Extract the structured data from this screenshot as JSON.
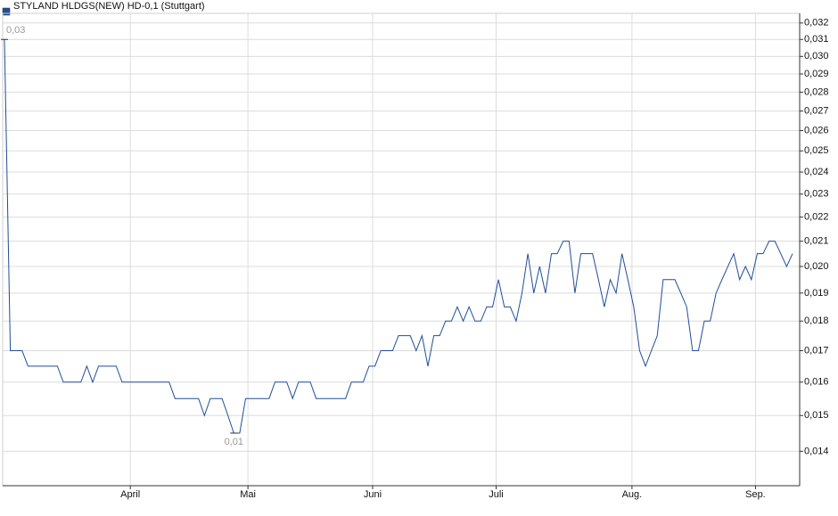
{
  "chart_data": {
    "type": "line",
    "title": "STYLAND HLDGS(NEW) HD-0,1 (Stuttgart)",
    "series": [
      {
        "name": "STYLAND HLDGS(NEW) HD-0,1 (Stuttgart)",
        "color": "#1f4e99",
        "values": [
          0.031,
          0.017,
          0.017,
          0.017,
          0.0165,
          0.0165,
          0.0165,
          0.0165,
          0.0165,
          0.0165,
          0.016,
          0.016,
          0.016,
          0.016,
          0.0165,
          0.016,
          0.0165,
          0.0165,
          0.0165,
          0.0165,
          0.016,
          0.016,
          0.016,
          0.016,
          0.016,
          0.016,
          0.016,
          0.016,
          0.016,
          0.0155,
          0.0155,
          0.0155,
          0.0155,
          0.0155,
          0.015,
          0.0155,
          0.0155,
          0.0155,
          0.015,
          0.0145,
          0.0145,
          0.0155,
          0.0155,
          0.0155,
          0.0155,
          0.0155,
          0.016,
          0.016,
          0.016,
          0.0155,
          0.016,
          0.016,
          0.016,
          0.0155,
          0.0155,
          0.0155,
          0.0155,
          0.0155,
          0.0155,
          0.016,
          0.016,
          0.016,
          0.0165,
          0.0165,
          0.017,
          0.017,
          0.017,
          0.0175,
          0.0175,
          0.0175,
          0.017,
          0.0175,
          0.0165,
          0.0175,
          0.0175,
          0.018,
          0.018,
          0.0185,
          0.018,
          0.0185,
          0.018,
          0.018,
          0.0185,
          0.0185,
          0.0195,
          0.0185,
          0.0185,
          0.018,
          0.019,
          0.0205,
          0.019,
          0.02,
          0.019,
          0.0205,
          0.0205,
          0.021,
          0.021,
          0.019,
          0.0205,
          0.0205,
          0.0205,
          0.0195,
          0.0185,
          0.0195,
          0.019,
          0.0205,
          0.0195,
          0.0185,
          0.017,
          0.0165,
          0.017,
          0.0175,
          0.0195,
          0.0195,
          0.0195,
          0.019,
          0.0185,
          0.017,
          0.017,
          0.018,
          0.018,
          0.019,
          0.0195,
          0.02,
          0.0205,
          0.0195,
          0.02,
          0.0195,
          0.0205,
          0.0205,
          0.021,
          0.021,
          0.0205,
          0.02,
          0.0205
        ]
      }
    ],
    "annotations": [
      "0,03",
      "0,01"
    ],
    "xlim": [
      0,
      134
    ],
    "xticks": [
      {
        "value": 21.4,
        "label": "April"
      },
      {
        "value": 41.4,
        "label": "Mai"
      },
      {
        "value": 62.6,
        "label": "Juni"
      },
      {
        "value": 83.6,
        "label": "Juli"
      },
      {
        "value": 106.7,
        "label": "Aug."
      },
      {
        "value": 127.7,
        "label": "Sep."
      }
    ],
    "ylim": [
      0.0131,
      0.0326
    ],
    "log_y": true,
    "yticks": [
      {
        "value": 0.014,
        "label": "0,014"
      },
      {
        "value": 0.015,
        "label": "0,015"
      },
      {
        "value": 0.016,
        "label": "0,016"
      },
      {
        "value": 0.017,
        "label": "0,017"
      },
      {
        "value": 0.018,
        "label": "0,018"
      },
      {
        "value": 0.019,
        "label": "0,019"
      },
      {
        "value": 0.02,
        "label": "0,020"
      },
      {
        "value": 0.021,
        "label": "0,021"
      },
      {
        "value": 0.022,
        "label": "0,022"
      },
      {
        "value": 0.023,
        "label": "0,023"
      },
      {
        "value": 0.024,
        "label": "0,024"
      },
      {
        "value": 0.025,
        "label": "0,025"
      },
      {
        "value": 0.026,
        "label": "0,026"
      },
      {
        "value": 0.027,
        "label": "0,027"
      },
      {
        "value": 0.028,
        "label": "0,028"
      },
      {
        "value": 0.029,
        "label": "0,029"
      },
      {
        "value": 0.03,
        "label": "0,030"
      },
      {
        "value": 0.031,
        "label": "0,031"
      },
      {
        "value": 0.032,
        "label": "0,032"
      }
    ],
    "grid": true
  }
}
